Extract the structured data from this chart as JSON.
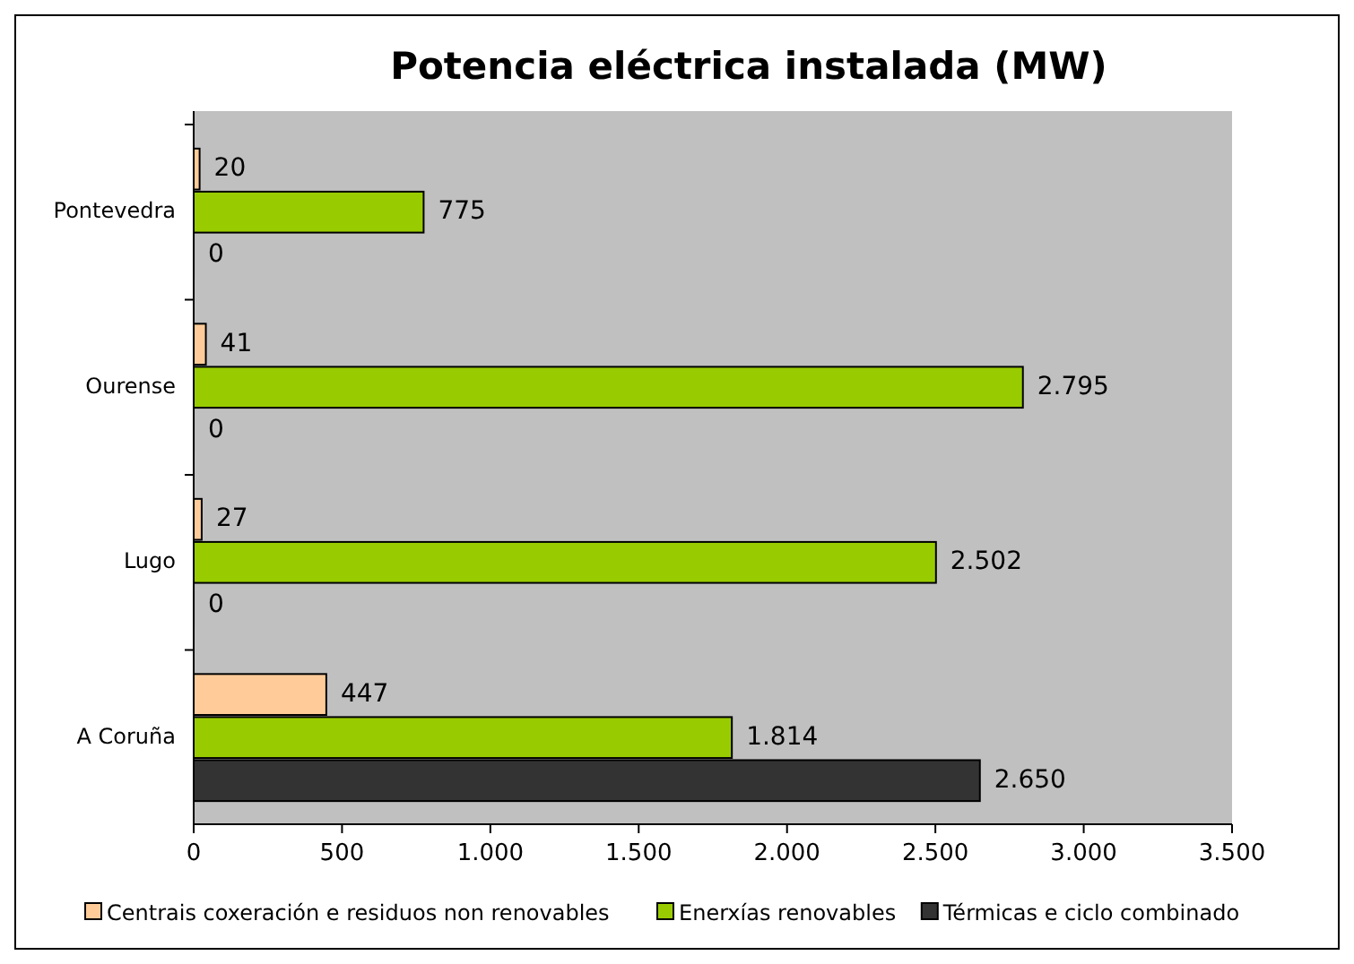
{
  "chart_data": {
    "type": "bar",
    "orientation": "horizontal",
    "title": "Potencia eléctrica instalada (MW)",
    "categories": [
      "Pontevedra",
      "Ourense",
      "Lugo",
      "A Coruña"
    ],
    "series": [
      {
        "name": "Centrais coxeración e residuos non renovables",
        "color": "#ffcc99",
        "values": [
          20,
          41,
          27,
          447
        ],
        "value_labels": [
          "20",
          "41",
          "27",
          "447"
        ]
      },
      {
        "name": "Enerxías renovables",
        "color": "#99cc00",
        "values": [
          775,
          2795,
          2502,
          1814
        ],
        "value_labels": [
          "775",
          "2.795",
          "2.502",
          "1.814"
        ]
      },
      {
        "name": "Térmicas e ciclo combinado",
        "color": "#333333",
        "values": [
          0,
          0,
          0,
          2650
        ],
        "value_labels": [
          "0",
          "0",
          "0",
          "2.650"
        ]
      }
    ],
    "xlim": [
      0,
      3500
    ],
    "xticks": [
      0,
      500,
      {
        "value": 1000,
        "label": "1.000"
      },
      {
        "value": 1500,
        "label": "1.500"
      },
      {
        "value": 2000,
        "label": "2.000"
      },
      {
        "value": 2500,
        "label": "2.500"
      },
      {
        "value": 3000,
        "label": "3.000"
      },
      {
        "value": 3500,
        "label": "3.500"
      }
    ],
    "legend": "bottom",
    "grid": false
  }
}
